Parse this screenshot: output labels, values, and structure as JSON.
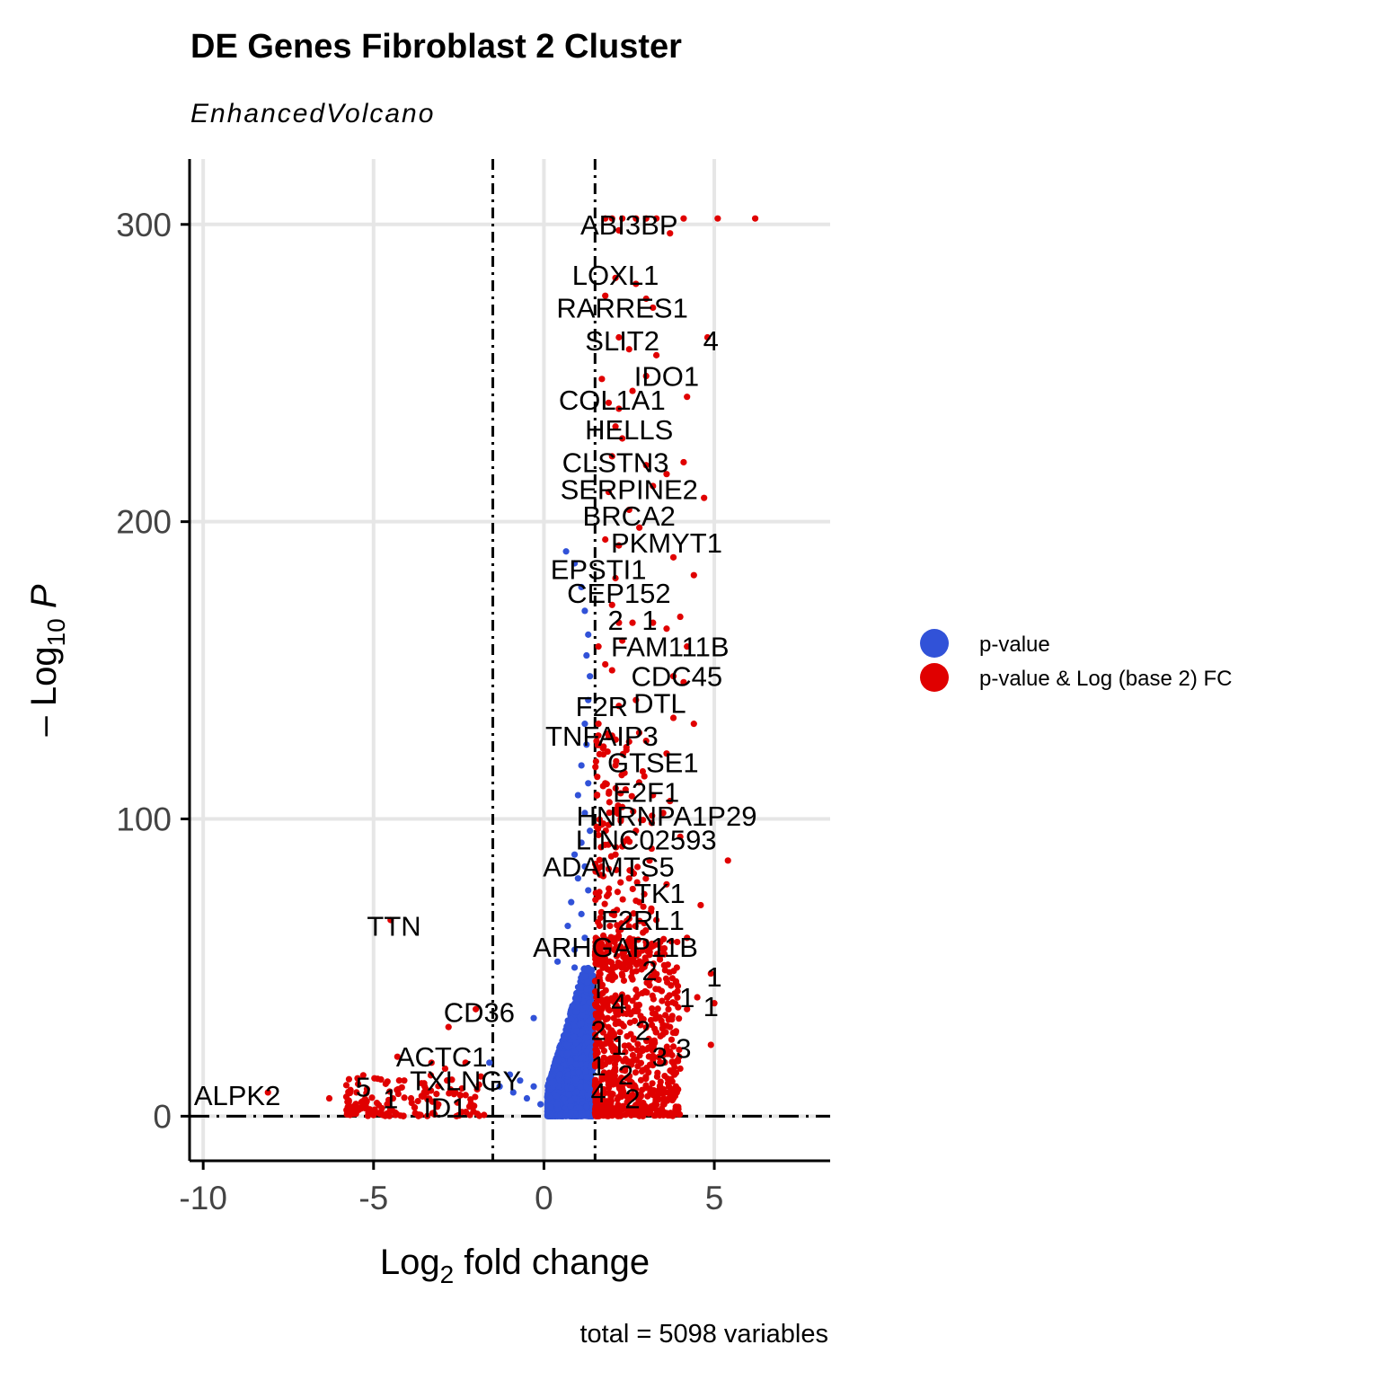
{
  "chart_data": {
    "type": "scatter",
    "title": "DE Genes Fibroblast 2 Cluster",
    "subtitle": "EnhancedVolcano",
    "xlabel_main": "Log",
    "xlabel_sub": "2",
    "xlabel_rest": " fold change",
    "ylabel_pre": "– Log",
    "ylabel_sub": "10",
    "ylabel_var": "P",
    "caption": "total = 5098 variables",
    "xlim": [
      -10.4,
      8.4
    ],
    "ylim": [
      -15,
      322
    ],
    "xticks": [
      -10,
      -5,
      0,
      5
    ],
    "xtick_labels": [
      "-10",
      "-5",
      "0",
      "5"
    ],
    "yticks": [
      0,
      100,
      200,
      300
    ],
    "ytick_labels": [
      "0",
      "100",
      "200",
      "300"
    ],
    "grid": true,
    "fc_cutoff": 1.5,
    "p_cutoff_log10": 0,
    "legend_position": "right",
    "colors": {
      "pvalue": "#3152d8",
      "pvalue_fc": "#e00000",
      "axis": "#000000",
      "grid": "#e6e6e6",
      "tick_text": "#444444"
    },
    "legend": [
      {
        "name": "p-value",
        "color": "#3152d8"
      },
      {
        "name": "p-value & Log (base 2) FC",
        "color": "#e00000"
      }
    ],
    "series": [
      {
        "name": "p-value",
        "points": [
          [
            0.65,
            190
          ],
          [
            0.9,
            186
          ],
          [
            1.1,
            178
          ],
          [
            1.2,
            170
          ],
          [
            1.3,
            162
          ],
          [
            1.25,
            155
          ],
          [
            1.35,
            148
          ],
          [
            1.3,
            140
          ],
          [
            1.2,
            132
          ],
          [
            1.25,
            125
          ],
          [
            1.1,
            118
          ],
          [
            1.3,
            112
          ],
          [
            1.0,
            108
          ],
          [
            1.2,
            102
          ],
          [
            1.35,
            96
          ],
          [
            1.1,
            92
          ],
          [
            0.9,
            88
          ],
          [
            1.2,
            84
          ],
          [
            1.0,
            80
          ],
          [
            1.3,
            76
          ],
          [
            0.8,
            72
          ],
          [
            1.1,
            68
          ],
          [
            0.7,
            64
          ],
          [
            1.2,
            60
          ],
          [
            0.9,
            56
          ],
          [
            0.4,
            52
          ],
          [
            0.9,
            50
          ],
          [
            -0.3,
            33
          ],
          [
            -1.6,
            18
          ],
          [
            -1.3,
            10
          ],
          [
            -0.9,
            8
          ],
          [
            -0.5,
            6
          ],
          [
            -0.1,
            4
          ],
          [
            0.2,
            3
          ],
          [
            -1.0,
            14
          ],
          [
            -0.7,
            12
          ],
          [
            -0.3,
            10
          ]
        ],
        "bulk": {
          "x_min": 0.1,
          "x_max": 1.45,
          "y_min": 0,
          "y_max": 50,
          "count": 2400
        }
      },
      {
        "name": "p-value & Log (base 2) FC",
        "points": [
          [
            1.8,
            302
          ],
          [
            2.0,
            302
          ],
          [
            2.3,
            302
          ],
          [
            2.7,
            302
          ],
          [
            3.0,
            302
          ],
          [
            3.3,
            302
          ],
          [
            4.1,
            302
          ],
          [
            5.1,
            302
          ],
          [
            6.2,
            302
          ],
          [
            2.2,
            298
          ],
          [
            3.7,
            297
          ],
          [
            2.1,
            282
          ],
          [
            2.7,
            280
          ],
          [
            3.0,
            275
          ],
          [
            1.8,
            276
          ],
          [
            3.2,
            272
          ],
          [
            2.2,
            262
          ],
          [
            4.8,
            262
          ],
          [
            2.5,
            258
          ],
          [
            3.3,
            256
          ],
          [
            1.7,
            248
          ],
          [
            3.0,
            249
          ],
          [
            2.6,
            244
          ],
          [
            4.2,
            242
          ],
          [
            1.9,
            240
          ],
          [
            2.2,
            238
          ],
          [
            2.1,
            232
          ],
          [
            2.3,
            228
          ],
          [
            2.0,
            222
          ],
          [
            3.0,
            219
          ],
          [
            4.1,
            220
          ],
          [
            3.6,
            216
          ],
          [
            1.9,
            210
          ],
          [
            3.2,
            212
          ],
          [
            4.7,
            208
          ],
          [
            2.5,
            204
          ],
          [
            2.8,
            198
          ],
          [
            1.8,
            194
          ],
          [
            2.2,
            192
          ],
          [
            3.8,
            188
          ],
          [
            4.4,
            182
          ],
          [
            2.1,
            181
          ],
          [
            2.0,
            172
          ],
          [
            2.2,
            166
          ],
          [
            2.6,
            166
          ],
          [
            3.2,
            166
          ],
          [
            4.0,
            168
          ],
          [
            3.6,
            164
          ],
          [
            2.3,
            160
          ],
          [
            1.6,
            158
          ],
          [
            4.2,
            158
          ],
          [
            1.8,
            152
          ],
          [
            2.0,
            150
          ],
          [
            3.8,
            148
          ],
          [
            4.1,
            146
          ],
          [
            2.2,
            138
          ],
          [
            2.7,
            140
          ],
          [
            3.8,
            134
          ],
          [
            4.4,
            132
          ],
          [
            1.6,
            132
          ],
          [
            2.0,
            128
          ],
          [
            2.5,
            126
          ],
          [
            3.6,
            122
          ],
          [
            2.1,
            118
          ],
          [
            2.9,
            116
          ],
          [
            1.8,
            112
          ],
          [
            3.2,
            108
          ],
          [
            3.7,
            106
          ],
          [
            2.3,
            104
          ],
          [
            3.5,
            102
          ],
          [
            1.9,
            98
          ],
          [
            2.7,
            96
          ],
          [
            4.0,
            94
          ],
          [
            5.4,
            86
          ],
          [
            2.1,
            88
          ],
          [
            3.1,
            86
          ],
          [
            1.7,
            84
          ],
          [
            2.5,
            80
          ],
          [
            3.6,
            78
          ],
          [
            4.6,
            71
          ],
          [
            2.8,
            72
          ],
          [
            2.0,
            68
          ],
          [
            3.3,
            66
          ],
          [
            4.2,
            60
          ],
          [
            1.9,
            58
          ],
          [
            3.4,
            54
          ],
          [
            3.9,
            50
          ],
          [
            4.9,
            48
          ],
          [
            2.6,
            46
          ],
          [
            3.1,
            44
          ],
          [
            4.5,
            40
          ],
          [
            5.0,
            38
          ],
          [
            4.2,
            36
          ],
          [
            3.7,
            30
          ],
          [
            4.9,
            24
          ],
          [
            4.0,
            16
          ],
          [
            3.9,
            8
          ],
          [
            -4.5,
            66
          ],
          [
            -2.8,
            30
          ],
          [
            -2.0,
            36
          ],
          [
            -4.3,
            20
          ],
          [
            -3.3,
            18
          ],
          [
            -2.9,
            16
          ],
          [
            -2.3,
            18
          ],
          [
            -8.1,
            8
          ],
          [
            -6.3,
            6
          ],
          [
            -5.5,
            8
          ],
          [
            -5.2,
            5
          ],
          [
            -4.6,
            4
          ],
          [
            -3.9,
            6
          ],
          [
            -3.5,
            10
          ],
          [
            -3.1,
            4
          ],
          [
            -2.6,
            8
          ],
          [
            -4.1,
            12
          ],
          [
            -3.8,
            3
          ]
        ],
        "bulk": [
          {
            "x_min": 1.5,
            "x_max": 4.0,
            "y_min": 0,
            "y_max": 60,
            "count": 700
          },
          {
            "x_min": 1.5,
            "x_max": 3.2,
            "y_min": 50,
            "y_max": 130,
            "count": 160
          },
          {
            "x_min": -5.8,
            "x_max": -1.6,
            "y_min": 0,
            "y_max": 14,
            "count": 140
          }
        ]
      }
    ],
    "labels": [
      {
        "text": "ABI3BP",
        "x": 2.5,
        "y": 300
      },
      {
        "text": "LOXL1",
        "x": 2.1,
        "y": 283
      },
      {
        "text": "RARRES1",
        "x": 2.3,
        "y": 272
      },
      {
        "text": "SLIT2",
        "x": 2.3,
        "y": 261
      },
      {
        "text": "4",
        "x": 4.9,
        "y": 261
      },
      {
        "text": "IDO1",
        "x": 3.6,
        "y": 249
      },
      {
        "text": "COL1A1",
        "x": 2.0,
        "y": 241
      },
      {
        "text": "HELLS",
        "x": 2.5,
        "y": 231
      },
      {
        "text": "CLSTN3",
        "x": 2.1,
        "y": 220
      },
      {
        "text": "SERPINE2",
        "x": 2.5,
        "y": 211
      },
      {
        "text": "BRCA2",
        "x": 2.5,
        "y": 202
      },
      {
        "text": "PKMYT1",
        "x": 3.6,
        "y": 193
      },
      {
        "text": "EPSTI1",
        "x": 1.6,
        "y": 184
      },
      {
        "text": "CEP152",
        "x": 2.2,
        "y": 176
      },
      {
        "text": "2",
        "x": 2.1,
        "y": 167
      },
      {
        "text": "1",
        "x": 3.1,
        "y": 167
      },
      {
        "text": "FAM111B",
        "x": 3.7,
        "y": 158
      },
      {
        "text": "CDC45",
        "x": 3.9,
        "y": 148
      },
      {
        "text": "DTL",
        "x": 3.4,
        "y": 139
      },
      {
        "text": "F2R",
        "x": 1.7,
        "y": 138
      },
      {
        "text": "TNFAIP3",
        "x": 1.7,
        "y": 128
      },
      {
        "text": "GTSE1",
        "x": 3.2,
        "y": 119
      },
      {
        "text": "E2F1",
        "x": 3.0,
        "y": 109
      },
      {
        "text": "HNRNPA1P29",
        "x": 3.6,
        "y": 101
      },
      {
        "text": "LINC02593",
        "x": 3.0,
        "y": 93
      },
      {
        "text": "ADAMTS5",
        "x": 1.9,
        "y": 84
      },
      {
        "text": "TK1",
        "x": 3.4,
        "y": 75
      },
      {
        "text": "F2RL1",
        "x": 2.9,
        "y": 66
      },
      {
        "text": "ARHGAP11B",
        "x": 2.1,
        "y": 57
      },
      {
        "text": "2",
        "x": 3.1,
        "y": 49
      },
      {
        "text": "1",
        "x": 5.0,
        "y": 47
      },
      {
        "text": "I",
        "x": 1.6,
        "y": 43
      },
      {
        "text": "1",
        "x": 4.2,
        "y": 40
      },
      {
        "text": "1",
        "x": 4.9,
        "y": 37
      },
      {
        "text": "4",
        "x": 2.2,
        "y": 38
      },
      {
        "text": "2",
        "x": 1.6,
        "y": 29
      },
      {
        "text": "2",
        "x": 2.9,
        "y": 29
      },
      {
        "text": "1",
        "x": 2.2,
        "y": 24
      },
      {
        "text": "3",
        "x": 4.1,
        "y": 23
      },
      {
        "text": "3",
        "x": 3.4,
        "y": 20
      },
      {
        "text": "1",
        "x": 1.6,
        "y": 17
      },
      {
        "text": "2",
        "x": 2.4,
        "y": 14
      },
      {
        "text": "4",
        "x": 1.6,
        "y": 8
      },
      {
        "text": "2",
        "x": 2.6,
        "y": 6
      },
      {
        "text": "TTN",
        "x": -4.4,
        "y": 64
      },
      {
        "text": "CD36",
        "x": -1.9,
        "y": 35
      },
      {
        "text": "ACTC1",
        "x": -3.0,
        "y": 20
      },
      {
        "text": "TXLNGY",
        "x": -2.3,
        "y": 12
      },
      {
        "text": "ID1",
        "x": -2.9,
        "y": 3
      },
      {
        "text": "ALPK2",
        "x": -9.0,
        "y": 7
      },
      {
        "text": "5",
        "x": -5.3,
        "y": 10
      },
      {
        "text": "1",
        "x": -4.5,
        "y": 6
      }
    ]
  }
}
